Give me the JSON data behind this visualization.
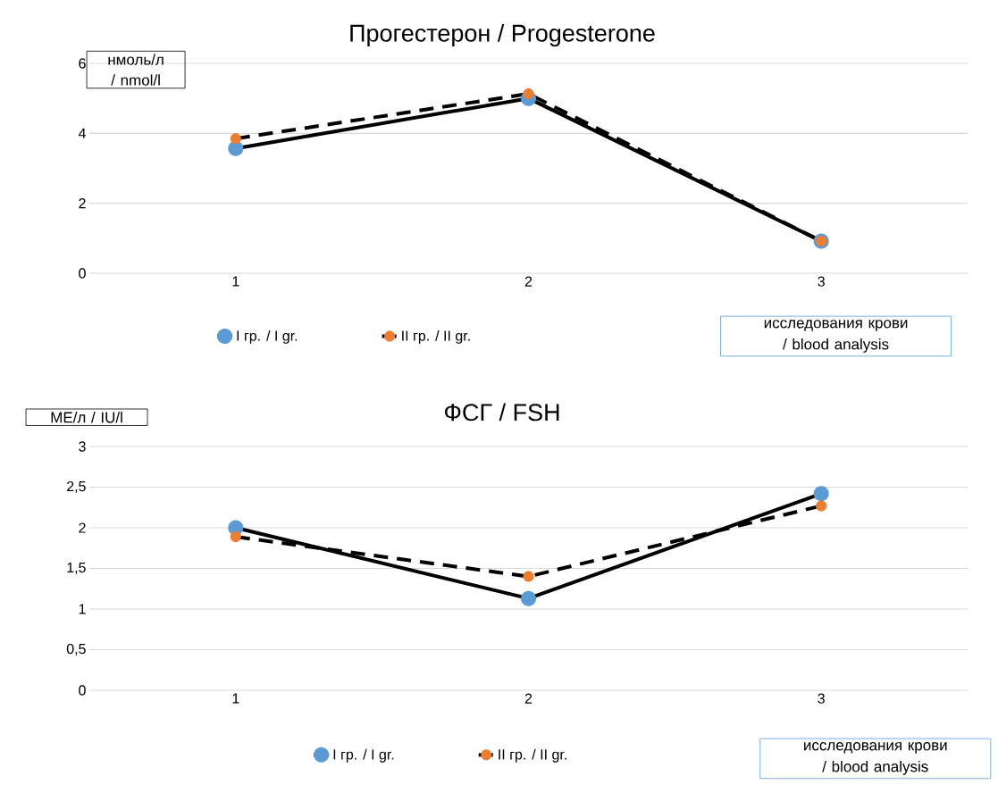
{
  "chart_data": [
    {
      "type": "line",
      "title": "Прогестерон / Progesterone",
      "xlabel": "исследования крови / blood analysis",
      "ylabel": "нмоль/л / nmol/l",
      "categories": [
        "1",
        "2",
        "3"
      ],
      "series": [
        {
          "name": "I гр. / I gr.",
          "color": "#5b9bd5",
          "line_style": "solid",
          "values": [
            3.57,
            5.0,
            0.92
          ]
        },
        {
          "name": "II гр. / II gr.",
          "color": "#ed7d31",
          "line_style": "dashed",
          "values": [
            3.85,
            5.13,
            0.92
          ]
        }
      ],
      "ylim": [
        0,
        6
      ],
      "yticks": [
        0,
        2,
        4,
        6
      ],
      "grid": "y",
      "legend": "bottom",
      "marker": "circle"
    },
    {
      "type": "line",
      "title": "ФСГ / FSH",
      "xlabel": "исследования крови / blood analysis",
      "ylabel": "МЕ/л  / IU/l",
      "categories": [
        "1",
        "2",
        "3"
      ],
      "series": [
        {
          "name": "I гр. / I gr.",
          "color": "#5b9bd5",
          "line_style": "solid",
          "values": [
            2.0,
            1.13,
            2.42
          ]
        },
        {
          "name": "II гр. / II gr.",
          "color": "#ed7d31",
          "line_style": "dashed",
          "values": [
            1.89,
            1.4,
            2.27
          ]
        }
      ],
      "ylim": [
        0,
        3
      ],
      "yticks": [
        0,
        {
          "value": 0.5,
          "label": "0,5"
        },
        1,
        {
          "value": 1.5,
          "label": "1,5"
        },
        2,
        {
          "value": 2.5,
          "label": "2,5"
        },
        3
      ],
      "grid": "y",
      "legend": "bottom",
      "marker": "circle"
    }
  ]
}
